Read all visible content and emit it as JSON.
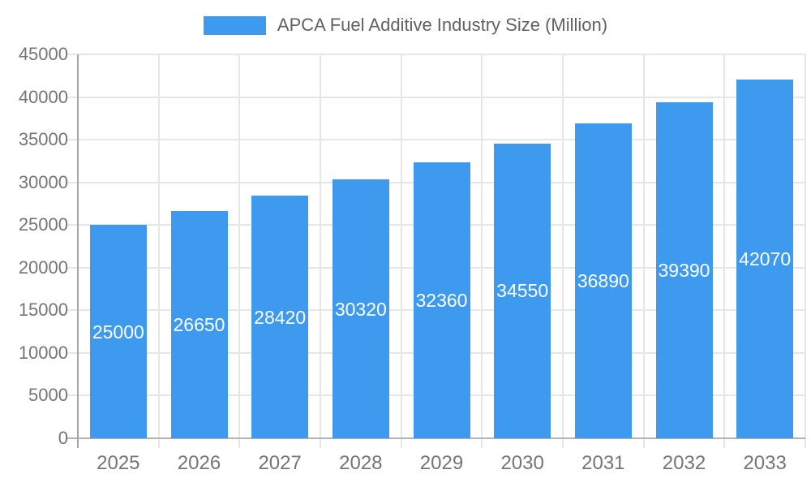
{
  "chart_data": {
    "type": "bar",
    "title": "APCA Fuel Additive Industry Size (Million)",
    "legend_position": "top-center",
    "categories": [
      "2025",
      "2026",
      "2027",
      "2028",
      "2029",
      "2030",
      "2031",
      "2032",
      "2033"
    ],
    "series": [
      {
        "name": "APCA Fuel Additive Industry Size (Million)",
        "values": [
          25000,
          26650,
          28420,
          30320,
          32360,
          34550,
          36890,
          39390,
          42070
        ]
      }
    ],
    "value_labels": "inside, vertically centered, white",
    "xlabel": "",
    "ylabel": "",
    "ylim": [
      0,
      45000
    ],
    "y_ticks": [
      0,
      5000,
      10000,
      15000,
      20000,
      25000,
      30000,
      35000,
      40000,
      45000
    ],
    "grid": "horizontal and vertical light gridlines, ticks extend outside axes",
    "colors": {
      "bar": "#3E9AEF",
      "gridline": "#E6E6E6",
      "baseline": "#B3B3B3",
      "y_axis_line": "#A6A6A6",
      "tick_text": "#757575",
      "legend_text": "#616161",
      "value_label_text": "#FFFFFF",
      "background": "#FFFFFF"
    }
  }
}
